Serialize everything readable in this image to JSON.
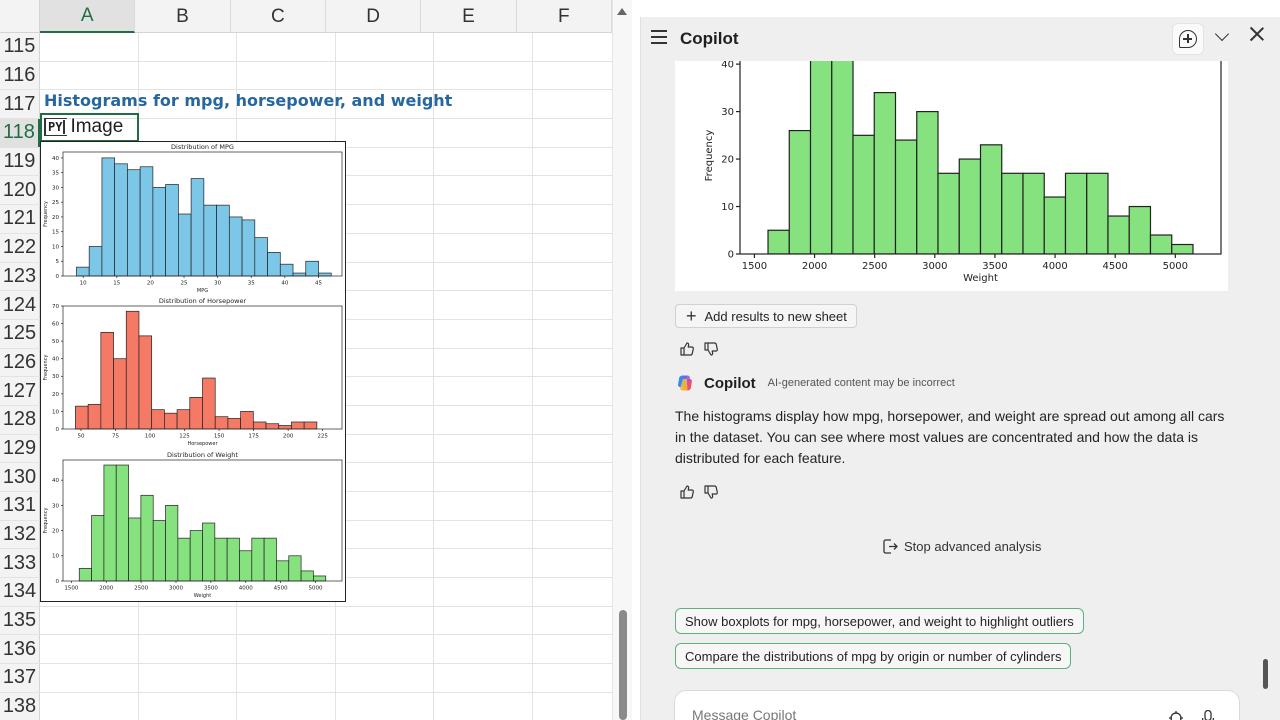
{
  "sheet": {
    "columns": [
      "A",
      "B",
      "C",
      "D",
      "E",
      "F"
    ],
    "active_column": "A",
    "rows": [
      "115",
      "116",
      "117",
      "118",
      "119",
      "120",
      "121",
      "122",
      "123",
      "124",
      "125",
      "126",
      "127",
      "128",
      "129",
      "130",
      "131",
      "132",
      "133",
      "134",
      "135",
      "136",
      "137",
      "138"
    ],
    "active_row": "118",
    "title_cell": "Histograms for mpg, horsepower, and weight",
    "python_cell": {
      "badge": "PY",
      "value": "Image"
    }
  },
  "embedded_charts": [
    {
      "type": "bar",
      "title": "Distribution of MPG",
      "xlabel": "MPG",
      "ylabel": "Frequency",
      "color": "#7cc7e8",
      "x_start": 9,
      "bin_width": 1.895,
      "xlim": [
        7,
        48.5
      ],
      "ylim": [
        0,
        42
      ],
      "xticks": [
        10,
        15,
        20,
        25,
        30,
        35,
        40,
        45
      ],
      "yticks": [
        0,
        5,
        10,
        15,
        20,
        25,
        30,
        35,
        40
      ],
      "values": [
        3,
        10,
        40,
        38,
        36,
        37,
        30,
        31,
        21,
        33,
        24,
        24,
        20,
        19,
        13,
        8,
        4,
        1,
        5,
        1
      ]
    },
    {
      "type": "bar",
      "title": "Distribution of Horsepower",
      "xlabel": "Horsepower",
      "ylabel": "Frequency",
      "color": "#f47a66",
      "x_start": 46,
      "bin_width": 9.2,
      "xlim": [
        37,
        239
      ],
      "ylim": [
        0,
        70
      ],
      "xticks": [
        50,
        75,
        100,
        125,
        150,
        175,
        200,
        225
      ],
      "yticks": [
        0,
        10,
        20,
        30,
        40,
        50,
        60,
        70
      ],
      "values": [
        13,
        14,
        55,
        40,
        67,
        53,
        11,
        9,
        11,
        18,
        29,
        7,
        6,
        10,
        4,
        3,
        2,
        4,
        4
      ]
    },
    {
      "type": "bar",
      "title": "Distribution of Weight",
      "xlabel": "Weight",
      "ylabel": "Frequency",
      "color": "#86e27e",
      "x_start": 1613,
      "bin_width": 176.7,
      "xlim": [
        1380,
        5380
      ],
      "ylim": [
        0,
        48
      ],
      "xticks": [
        1500,
        2000,
        2500,
        3000,
        3500,
        4000,
        4500,
        5000
      ],
      "yticks": [
        0,
        10,
        20,
        30,
        40
      ],
      "values": [
        5,
        26,
        46,
        46,
        25,
        34,
        24,
        30,
        17,
        20,
        23,
        17,
        17,
        12,
        17,
        17,
        8,
        10,
        4,
        2
      ]
    }
  ],
  "copilot": {
    "title": "Copilot",
    "result_chart": {
      "type": "bar",
      "title": "",
      "xlabel": "Weight",
      "ylabel": "Frequency",
      "color": "#86e27e",
      "x_start": 1613,
      "bin_width": 176.7,
      "xlim": [
        1380,
        5380
      ],
      "ylim": [
        0,
        48
      ],
      "view_top": 41.5,
      "xticks": [
        1500,
        2000,
        2500,
        3000,
        3500,
        4000,
        4500,
        5000
      ],
      "yticks": [
        0,
        10,
        20,
        30,
        40
      ],
      "values": [
        5,
        26,
        46,
        46,
        25,
        34,
        24,
        30,
        17,
        20,
        23,
        17,
        17,
        12,
        17,
        17,
        8,
        10,
        4,
        2
      ]
    },
    "add_results_label": "Add results to new sheet",
    "author": "Copilot",
    "disclaimer": "AI-generated content may be incorrect",
    "message": "The histograms display how mpg, horsepower, and weight are spread out among all cars in the dataset. You can see where most values are concentrated and how the data is distributed for each feature.",
    "stop_label": "Stop advanced analysis",
    "suggestions": [
      "Show boxplots for mpg, horsepower, and weight to highlight outliers",
      "Compare the distributions of mpg by origin or number of cylinders"
    ],
    "input_placeholder": "Message Copilot",
    "icons": [
      "menu-icon",
      "new-chat-icon",
      "chevron-down-icon",
      "close-icon",
      "thumbs-up-icon",
      "thumbs-down-icon",
      "copilot-logo-icon",
      "stop-icon",
      "attach-icon",
      "microphone-icon"
    ]
  }
}
